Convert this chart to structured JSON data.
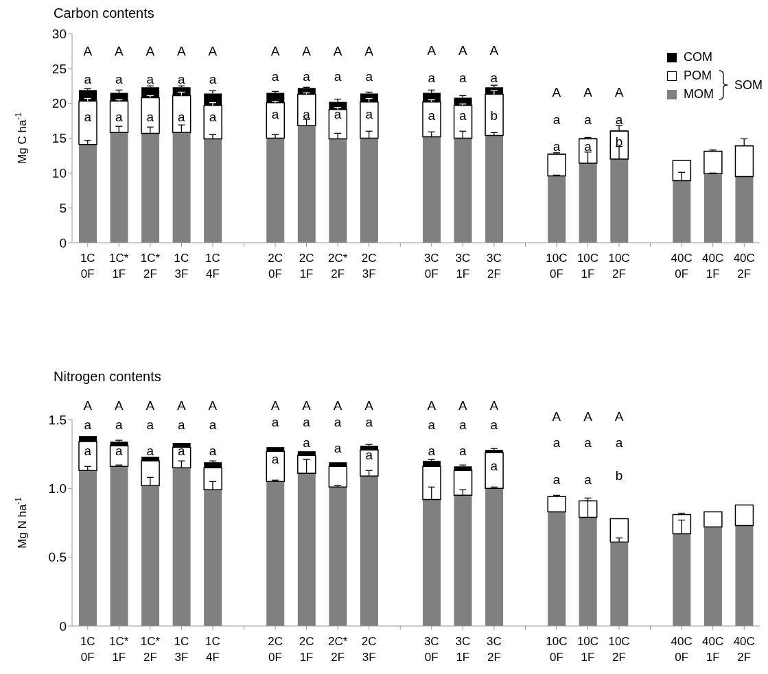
{
  "chart_data": [
    {
      "type": "bar",
      "title": "Carbon contents",
      "ylabel": "Mg C ha$^{-1}$",
      "stacked": true,
      "legend": "top right",
      "categories": [
        "1C\n0F",
        "1C*\n1F",
        "1C*\n2F",
        "1C\n3F",
        "1C\n4F",
        null,
        "2C\n0F",
        "2C\n1F",
        "2C*\n2F",
        "2C\n3F",
        null,
        "3C\n0F",
        "3C\n1F",
        "3C\n2F",
        null,
        "10C\n0F",
        "10C\n1F",
        "10C\n2F",
        null,
        "40C\n0F",
        "40C\n1F",
        "40C\n2F"
      ],
      "ylim": [
        0,
        30
      ],
      "yticks": [
        0,
        5,
        10,
        15,
        20,
        25,
        30
      ],
      "series": [
        {
          "name": "MOM",
          "color": "#808080",
          "values": [
            14.1,
            15.8,
            15.7,
            15.8,
            14.9,
            null,
            15.0,
            16.8,
            14.9,
            15.0,
            null,
            15.2,
            15.0,
            15.4,
            null,
            9.6,
            11.4,
            12.0,
            null,
            8.9,
            9.9,
            9.5
          ],
          "errors": [
            [
              14.1,
              14.7
            ],
            [
              15.8,
              16.7
            ],
            [
              15.7,
              16.6
            ],
            [
              15.8,
              16.9
            ],
            [
              14.9,
              15.5
            ],
            null,
            [
              15.0,
              15.5
            ],
            [
              16.8,
              17.7
            ],
            [
              14.9,
              15.7
            ],
            [
              15.0,
              16.0
            ],
            null,
            [
              15.2,
              15.9
            ],
            [
              15.0,
              16.0
            ],
            [
              15.4,
              15.8
            ],
            null,
            [
              9.6,
              9.7
            ],
            [
              11.4,
              13.0
            ],
            [
              12.0,
              13.8
            ],
            null,
            [
              8.9,
              10.1
            ],
            [
              9.9,
              10.0
            ],
            null
          ]
        },
        {
          "name": "POM",
          "color": "#ffffff",
          "values": [
            6.2,
            4.5,
            5.1,
            5.3,
            4.8,
            null,
            5.1,
            4.5,
            4.2,
            5.2,
            null,
            5.0,
            4.7,
            5.9,
            null,
            3.1,
            3.5,
            4.0,
            null,
            2.9,
            3.2,
            4.4
          ],
          "errors": [
            [
              20.3,
              20.7
            ],
            [
              20.3,
              20.5
            ],
            [
              20.8,
              21.1
            ],
            [
              21.1,
              21.6
            ],
            [
              19.7,
              20.1
            ],
            null,
            [
              20.1,
              20.3
            ],
            [
              21.3,
              21.5
            ],
            [
              19.1,
              19.4
            ],
            [
              20.2,
              20.7
            ],
            null,
            [
              20.2,
              20.5
            ],
            [
              19.7,
              19.9
            ],
            [
              21.3,
              21.8
            ],
            null,
            null,
            null,
            null,
            null,
            null,
            null,
            [
              13.9,
              14.9
            ]
          ]
        },
        {
          "name": "COM",
          "color": "#000000",
          "values": [
            1.6,
            1.2,
            1.5,
            1.2,
            1.7,
            null,
            1.4,
            0.9,
            1.1,
            1.2,
            null,
            1.3,
            1.1,
            1.0,
            null,
            0.1,
            0.1,
            0.1,
            null,
            0,
            0.1,
            0
          ],
          "errors": [
            [
              21.9,
              22.1
            ],
            [
              21.5,
              21.9
            ],
            [
              22.3,
              22.5
            ],
            [
              22.3,
              22.5
            ],
            [
              21.4,
              21.8
            ],
            null,
            [
              21.5,
              21.7
            ],
            [
              22.2,
              22.3
            ],
            [
              20.2,
              20.6
            ],
            [
              21.4,
              21.6
            ],
            null,
            [
              21.5,
              21.9
            ],
            [
              20.8,
              21.1
            ],
            [
              22.3,
              22.6
            ],
            null,
            [
              12.8,
              12.9
            ],
            [
              15.0,
              15.1
            ],
            [
              16.1,
              16.8
            ],
            null,
            null,
            [
              13.2,
              13.3
            ],
            null
          ]
        }
      ],
      "annotations": [
        "SOM",
        "A",
        "A",
        "A",
        "A",
        "A",
        "a",
        "a",
        "a",
        "a",
        "a",
        "a",
        "a",
        "a",
        "a",
        "a",
        "A",
        "A",
        "A",
        "A",
        "a",
        "a",
        "a",
        "a",
        "a",
        "a",
        "a",
        "a",
        "A",
        "A",
        "A",
        "a",
        "a",
        "a",
        "a",
        "a",
        "b",
        "A",
        "A",
        "A",
        "a",
        "a",
        "a",
        "a",
        "a",
        "b"
      ]
    },
    {
      "type": "bar",
      "title": "Nitrogen contents",
      "ylabel": "Mg N ha$^{-1}$",
      "stacked": true,
      "categories": [
        "1C\n0F",
        "1C*\n1F",
        "1C*\n2F",
        "1C\n3F",
        "1C\n4F",
        null,
        "2C\n0F",
        "2C\n1F",
        "2C*\n2F",
        "2C\n3F",
        null,
        "3C\n0F",
        "3C\n1F",
        "3C\n2F",
        null,
        "10C\n0F",
        "10C\n1F",
        "10C\n2F",
        null,
        "40C\n0F",
        "40C\n1F",
        "40C\n2F"
      ],
      "ylim": [
        0,
        1.5
      ],
      "yticks": [
        0,
        0.5,
        {
          "value": 1,
          "label": "1.0"
        },
        1.5
      ],
      "series": [
        {
          "color": "#808080",
          "values": [
            1.13,
            1.16,
            1.02,
            1.15,
            0.99,
            null,
            1.05,
            1.11,
            1.01,
            1.09,
            null,
            0.92,
            0.95,
            1.0,
            null,
            0.83,
            0.79,
            0.61,
            null,
            0.67,
            0.72,
            0.73
          ],
          "errors": [
            [
              1.13,
              1.16
            ],
            [
              1.16,
              1.17
            ],
            [
              1.02,
              1.08
            ],
            [
              1.15,
              1.2
            ],
            [
              0.99,
              1.05
            ],
            null,
            [
              1.05,
              1.06
            ],
            [
              1.11,
              1.21
            ],
            [
              1.01,
              1.02
            ],
            [
              1.09,
              1.13
            ],
            null,
            [
              0.92,
              1.01
            ],
            [
              0.95,
              0.99
            ],
            [
              1.0,
              1.01
            ],
            null,
            null,
            [
              0.79,
              0.91
            ],
            [
              0.61,
              0.64
            ],
            null,
            [
              0.67,
              0.77
            ],
            null,
            null
          ]
        },
        {
          "color": "#ffffff",
          "values": [
            0.21,
            0.15,
            0.18,
            0.15,
            0.16,
            null,
            0.22,
            0.13,
            0.15,
            0.19,
            null,
            0.24,
            0.18,
            0.26,
            null,
            0.11,
            0.12,
            0.17,
            null,
            0.14,
            0.11,
            0.15
          ],
          "errors": [
            null,
            null,
            null,
            null,
            null,
            null,
            null,
            null,
            null,
            null,
            null,
            null,
            null,
            null,
            null,
            [
              0.94,
              0.95
            ],
            [
              0.91,
              0.93
            ],
            null,
            null,
            [
              0.81,
              0.82
            ],
            null,
            null
          ]
        },
        {
          "color": "#000000",
          "values": [
            0.04,
            0.03,
            0.03,
            0.03,
            0.04,
            null,
            0.03,
            0.03,
            0.03,
            0.03,
            null,
            0.04,
            0.03,
            0.02,
            null,
            0,
            0,
            0,
            null,
            0,
            0,
            0
          ],
          "errors": [
            null,
            [
              1.34,
              1.35
            ],
            null,
            null,
            [
              1.19,
              1.2
            ],
            null,
            null,
            null,
            null,
            [
              1.31,
              1.32
            ],
            null,
            [
              1.2,
              1.21
            ],
            [
              1.16,
              1.17
            ],
            [
              1.28,
              1.29
            ],
            null,
            null,
            null,
            null,
            null,
            null,
            null,
            null
          ]
        }
      ],
      "annotations": [
        "A",
        "A",
        "A",
        "A",
        "A",
        "a",
        "a",
        "a",
        "a",
        "a",
        "a",
        "a",
        "a",
        "a",
        "a",
        "A",
        "A",
        "A",
        "A",
        "a",
        "a",
        "a",
        "a",
        "a",
        "a",
        "a",
        "a",
        "A",
        "A",
        "A",
        "a",
        "a",
        "a",
        "a",
        "a",
        "a",
        "A",
        "A",
        "A",
        "a",
        "a",
        "a",
        "a",
        "a",
        "b"
      ]
    }
  ]
}
